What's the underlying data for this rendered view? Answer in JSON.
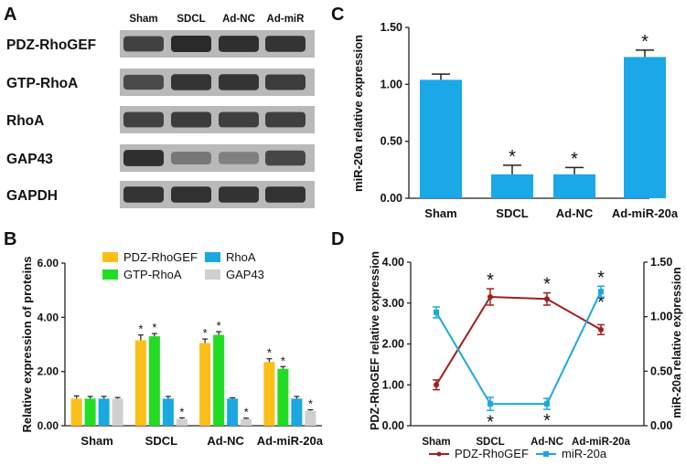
{
  "panels": {
    "a": {
      "letter": "A"
    },
    "b": {
      "letter": "B"
    },
    "c": {
      "letter": "C"
    },
    "d": {
      "letter": "D"
    }
  },
  "blot": {
    "columns": [
      "Sham",
      "SDCL",
      "Ad-NC",
      "Ad-miR"
    ],
    "rows": [
      {
        "label": "PDZ-RhoGEF",
        "intensity": [
          0.75,
          0.88,
          0.85,
          0.82
        ]
      },
      {
        "label": "GTP-RhoA",
        "intensity": [
          0.7,
          0.82,
          0.82,
          0.78
        ]
      },
      {
        "label": "RhoA",
        "intensity": [
          0.75,
          0.78,
          0.76,
          0.76
        ]
      },
      {
        "label": "GAP43",
        "intensity": [
          0.85,
          0.45,
          0.4,
          0.72
        ]
      },
      {
        "label": "GAPDH",
        "intensity": [
          0.82,
          0.84,
          0.83,
          0.83
        ]
      }
    ]
  },
  "chart_data": [
    {
      "id": "B",
      "type": "bar",
      "title": "",
      "xlabel": "",
      "ylabel": "Relative expression of proteins",
      "ylim": [
        0,
        6
      ],
      "yticks": [
        0,
        2,
        4,
        6
      ],
      "ytick_labels": [
        "0.00",
        "2.00",
        "4.00",
        "6.00"
      ],
      "categories": [
        "Sham",
        "SDCL",
        "Ad-NC",
        "Ad-miR-20a"
      ],
      "series": [
        {
          "name": "PDZ-RhoGEF",
          "color": "#fbbf1a",
          "values": [
            1.0,
            3.15,
            3.05,
            2.35
          ],
          "errors": [
            0.1,
            0.2,
            0.15,
            0.12
          ],
          "sig": [
            false,
            true,
            true,
            true
          ]
        },
        {
          "name": "GTP-RhoA",
          "color": "#22dd22",
          "values": [
            1.0,
            3.3,
            3.35,
            2.1
          ],
          "errors": [
            0.08,
            0.1,
            0.12,
            0.08
          ],
          "sig": [
            false,
            true,
            true,
            true
          ]
        },
        {
          "name": "RhoA",
          "color": "#1ba8e0",
          "values": [
            1.0,
            1.0,
            1.0,
            1.0
          ],
          "errors": [
            0.08,
            0.08,
            0.03,
            0.08
          ],
          "sig": [
            false,
            false,
            false,
            false
          ]
        },
        {
          "name": "GAP43",
          "color": "#d0d0d0",
          "values": [
            1.0,
            0.25,
            0.25,
            0.55
          ],
          "errors": [
            0.04,
            0.04,
            0.03,
            0.04
          ],
          "sig": [
            false,
            true,
            true,
            true
          ]
        }
      ],
      "legend": "top"
    },
    {
      "id": "C",
      "type": "bar",
      "title": "",
      "xlabel": "",
      "ylabel": "miR-20a relative expression",
      "ylim": [
        0,
        1.5
      ],
      "yticks": [
        0,
        0.5,
        1.0,
        1.5
      ],
      "ytick_labels": [
        "0.00",
        "0.50",
        "1.00",
        "1.50"
      ],
      "categories": [
        "Sham",
        "SDCL",
        "Ad-NC",
        "Ad-miR-20a"
      ],
      "series": [
        {
          "name": "miR-20a",
          "color": "#1ba8e8",
          "values": [
            1.04,
            0.21,
            0.21,
            1.24
          ],
          "errors": [
            0.05,
            0.08,
            0.06,
            0.06
          ],
          "sig": [
            false,
            true,
            true,
            true
          ]
        }
      ]
    },
    {
      "id": "D",
      "type": "line",
      "title": "",
      "xlabel": "",
      "ylabel": "PDZ-RhoGEF relative expression",
      "ylabel_right": "miR-20a relative expression",
      "ylim": [
        0,
        4
      ],
      "yticks": [
        0,
        1,
        2,
        3,
        4
      ],
      "ytick_labels": [
        "0.00",
        "1.00",
        "2.00",
        "3.00",
        "4.00"
      ],
      "ylim_right": [
        0,
        1.5
      ],
      "yticks_right": [
        0,
        0.5,
        1.0,
        1.5
      ],
      "ytick_labels_right": [
        "0.00",
        "0.50",
        "1.00",
        "1.50"
      ],
      "categories": [
        "Sham",
        "SDCL",
        "Ad-NC",
        "Ad-miR-20a"
      ],
      "series": [
        {
          "name": "PDZ-RhoGEF",
          "color": "#a31d1d",
          "axis": "left",
          "values": [
            1.0,
            3.15,
            3.1,
            2.35
          ],
          "errors": [
            0.12,
            0.2,
            0.15,
            0.12
          ],
          "sig": [
            false,
            true,
            true,
            true
          ]
        },
        {
          "name": "miR-20a",
          "color": "#1ba8e0",
          "axis": "right",
          "values": [
            1.04,
            0.2,
            0.2,
            1.23
          ],
          "errors": [
            0.05,
            0.06,
            0.05,
            0.05
          ],
          "sig": [
            false,
            true,
            true,
            true
          ]
        }
      ],
      "legend": "bottom"
    }
  ],
  "sig_mark": "*"
}
